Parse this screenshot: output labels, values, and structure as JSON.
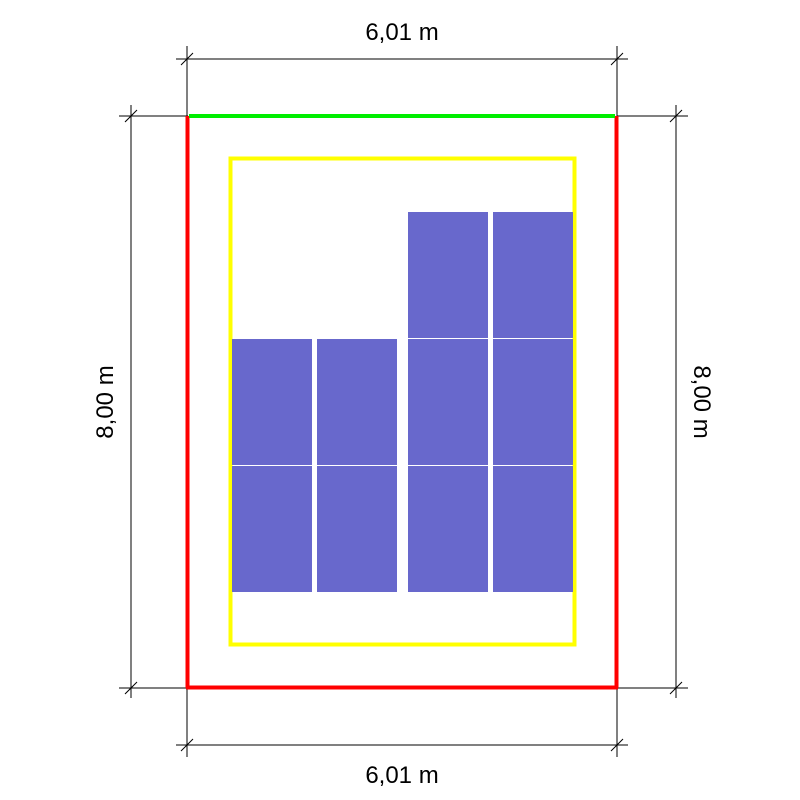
{
  "dimensions": {
    "top_width": "6,01 m",
    "bottom_width": "6,01 m",
    "left_height": "8,00 m",
    "right_height": "8,00 m"
  },
  "colors": {
    "roof_outline": "#ff0000",
    "roof_ridge_edge": "#00ee00",
    "setback_zone": "#ffff00",
    "solar_panel": "#6868cc",
    "dimension_line": "#000000"
  },
  "solar_panels": {
    "count": 10,
    "layout": "two columns of 2 panels (left) and two columns of 3 panels (right)"
  }
}
